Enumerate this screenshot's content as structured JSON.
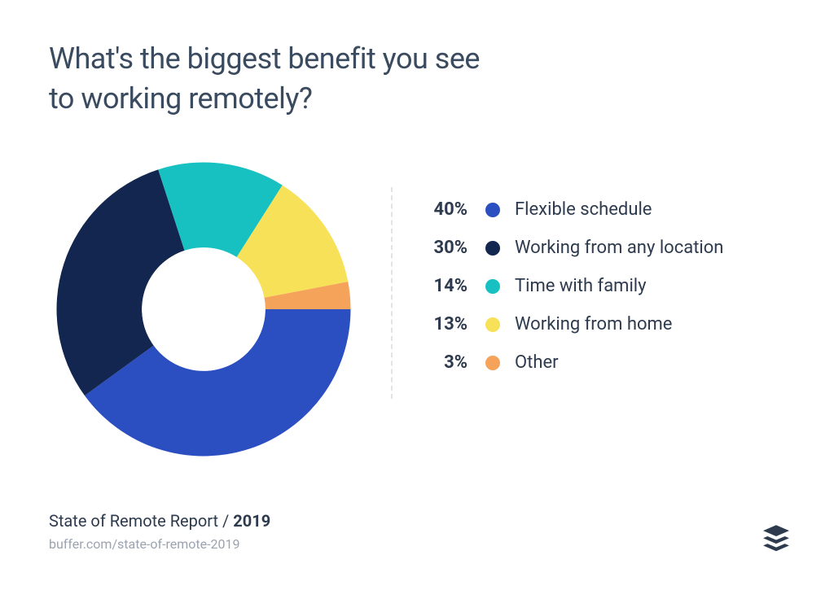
{
  "title_line1": "What's the biggest benefit you see",
  "title_line2": "to working remotely?",
  "chart": {
    "type": "donut",
    "inner_radius_ratio": 0.42,
    "start_angle_deg": 90,
    "background_color": "#ffffff",
    "slices": [
      {
        "label": "Flexible schedule",
        "value": 40,
        "percent_label": "40%",
        "color": "#2b4fc1"
      },
      {
        "label": "Working from any location",
        "value": 30,
        "percent_label": "30%",
        "color": "#13264f"
      },
      {
        "label": "Time with family",
        "value": 14,
        "percent_label": "14%",
        "color": "#18c1c1"
      },
      {
        "label": "Working from home",
        "value": 13,
        "percent_label": "13%",
        "color": "#f7e158"
      },
      {
        "label": "Other",
        "value": 3,
        "percent_label": "3%",
        "color": "#f5a35a"
      }
    ]
  },
  "legend": {
    "font_size": 22,
    "pct_font_weight": 700,
    "dot_size": 18,
    "row_gap": 22,
    "divider_color": "#e0e3e8"
  },
  "footer": {
    "report_prefix": "State of Remote Report / ",
    "report_year": "2019",
    "url": "buffer.com/state-of-remote-2019"
  },
  "logo": {
    "name": "buffer-logo-icon",
    "color": "#2e3b4e"
  }
}
